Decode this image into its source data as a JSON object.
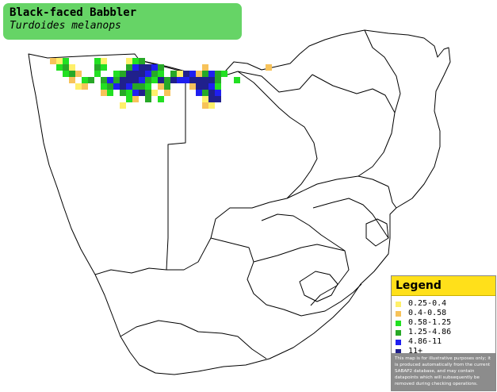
{
  "title": {
    "common_name": "Black-faced Babbler",
    "scientific_name": "Turdoides melanops"
  },
  "legend": {
    "heading": "Legend",
    "items": [
      {
        "label": "0.25-0.4",
        "color": "#fff06a"
      },
      {
        "label": "0.4-0.58",
        "color": "#f7c35a"
      },
      {
        "label": "0.58-1.25",
        "color": "#22e022"
      },
      {
        "label": "1.25-4.86",
        "color": "#27a827"
      },
      {
        "label": "4.86-11",
        "color": "#1f1ff0"
      },
      {
        "label": "11+",
        "color": "#20208c"
      }
    ],
    "note": "This map is for illustrative purposes only; it is produced automatically from the current SABAP2 database, and may contain datapoints which will subsequently be removed during checking operations."
  },
  "map": {
    "cells": [
      {
        "c": 0,
        "r": 0,
        "v": 1
      },
      {
        "c": 1,
        "r": 0,
        "v": 0
      },
      {
        "c": 2,
        "r": 0,
        "v": 2
      },
      {
        "c": 7,
        "r": 0,
        "v": 2
      },
      {
        "c": 8,
        "r": 0,
        "v": 0
      },
      {
        "c": 12,
        "r": 0,
        "v": 0
      },
      {
        "c": 13,
        "r": 0,
        "v": 2
      },
      {
        "c": 14,
        "r": 0,
        "v": 3
      },
      {
        "c": 1,
        "r": 1,
        "v": 2
      },
      {
        "c": 2,
        "r": 1,
        "v": 3
      },
      {
        "c": 3,
        "r": 1,
        "v": 0
      },
      {
        "c": 7,
        "r": 1,
        "v": 3
      },
      {
        "c": 8,
        "r": 1,
        "v": 2
      },
      {
        "c": 12,
        "r": 1,
        "v": 3
      },
      {
        "c": 13,
        "r": 1,
        "v": 4
      },
      {
        "c": 14,
        "r": 1,
        "v": 5
      },
      {
        "c": 15,
        "r": 1,
        "v": 5
      },
      {
        "c": 16,
        "r": 1,
        "v": 4
      },
      {
        "c": 17,
        "r": 1,
        "v": 3
      },
      {
        "c": 24,
        "r": 1,
        "v": 1
      },
      {
        "c": 34,
        "r": 1,
        "v": 1
      },
      {
        "c": 2,
        "r": 2,
        "v": 2
      },
      {
        "c": 3,
        "r": 2,
        "v": 3
      },
      {
        "c": 4,
        "r": 2,
        "v": 1
      },
      {
        "c": 7,
        "r": 2,
        "v": 2
      },
      {
        "c": 10,
        "r": 2,
        "v": 2
      },
      {
        "c": 11,
        "r": 2,
        "v": 3
      },
      {
        "c": 12,
        "r": 2,
        "v": 5
      },
      {
        "c": 13,
        "r": 2,
        "v": 5
      },
      {
        "c": 14,
        "r": 2,
        "v": 5
      },
      {
        "c": 15,
        "r": 2,
        "v": 4
      },
      {
        "c": 16,
        "r": 2,
        "v": 3
      },
      {
        "c": 17,
        "r": 2,
        "v": 2
      },
      {
        "c": 19,
        "r": 2,
        "v": 3
      },
      {
        "c": 20,
        "r": 2,
        "v": 0
      },
      {
        "c": 21,
        "r": 2,
        "v": 5
      },
      {
        "c": 22,
        "r": 2,
        "v": 4
      },
      {
        "c": 23,
        "r": 2,
        "v": 1
      },
      {
        "c": 24,
        "r": 2,
        "v": 3
      },
      {
        "c": 25,
        "r": 2,
        "v": 4
      },
      {
        "c": 26,
        "r": 2,
        "v": 3
      },
      {
        "c": 27,
        "r": 2,
        "v": 2
      },
      {
        "c": 3,
        "r": 3,
        "v": 1
      },
      {
        "c": 5,
        "r": 3,
        "v": 2
      },
      {
        "c": 6,
        "r": 3,
        "v": 3
      },
      {
        "c": 8,
        "r": 3,
        "v": 3
      },
      {
        "c": 9,
        "r": 3,
        "v": 4
      },
      {
        "c": 10,
        "r": 3,
        "v": 3
      },
      {
        "c": 11,
        "r": 3,
        "v": 5
      },
      {
        "c": 12,
        "r": 3,
        "v": 5
      },
      {
        "c": 13,
        "r": 3,
        "v": 5
      },
      {
        "c": 14,
        "r": 3,
        "v": 4
      },
      {
        "c": 15,
        "r": 3,
        "v": 3
      },
      {
        "c": 16,
        "r": 3,
        "v": 2
      },
      {
        "c": 17,
        "r": 3,
        "v": 5
      },
      {
        "c": 18,
        "r": 3,
        "v": 3
      },
      {
        "c": 19,
        "r": 3,
        "v": 5
      },
      {
        "c": 20,
        "r": 3,
        "v": 4
      },
      {
        "c": 21,
        "r": 3,
        "v": 4
      },
      {
        "c": 22,
        "r": 3,
        "v": 5
      },
      {
        "c": 23,
        "r": 3,
        "v": 5
      },
      {
        "c": 24,
        "r": 3,
        "v": 5
      },
      {
        "c": 25,
        "r": 3,
        "v": 5
      },
      {
        "c": 26,
        "r": 3,
        "v": 3
      },
      {
        "c": 29,
        "r": 3,
        "v": 2
      },
      {
        "c": 4,
        "r": 4,
        "v": 0
      },
      {
        "c": 5,
        "r": 4,
        "v": 1
      },
      {
        "c": 8,
        "r": 4,
        "v": 2
      },
      {
        "c": 9,
        "r": 4,
        "v": 3
      },
      {
        "c": 10,
        "r": 4,
        "v": 4
      },
      {
        "c": 11,
        "r": 4,
        "v": 5
      },
      {
        "c": 12,
        "r": 4,
        "v": 4
      },
      {
        "c": 13,
        "r": 4,
        "v": 3
      },
      {
        "c": 14,
        "r": 4,
        "v": 3
      },
      {
        "c": 15,
        "r": 4,
        "v": 2
      },
      {
        "c": 17,
        "r": 4,
        "v": 1
      },
      {
        "c": 18,
        "r": 4,
        "v": 3
      },
      {
        "c": 22,
        "r": 4,
        "v": 1
      },
      {
        "c": 23,
        "r": 4,
        "v": 5
      },
      {
        "c": 24,
        "r": 4,
        "v": 5
      },
      {
        "c": 25,
        "r": 4,
        "v": 4
      },
      {
        "c": 26,
        "r": 4,
        "v": 2
      },
      {
        "c": 8,
        "r": 5,
        "v": 1
      },
      {
        "c": 9,
        "r": 5,
        "v": 2
      },
      {
        "c": 11,
        "r": 5,
        "v": 3
      },
      {
        "c": 12,
        "r": 5,
        "v": 2
      },
      {
        "c": 13,
        "r": 5,
        "v": 4
      },
      {
        "c": 14,
        "r": 5,
        "v": 5
      },
      {
        "c": 15,
        "r": 5,
        "v": 3
      },
      {
        "c": 16,
        "r": 5,
        "v": 0
      },
      {
        "c": 18,
        "r": 5,
        "v": 1
      },
      {
        "c": 23,
        "r": 5,
        "v": 4
      },
      {
        "c": 24,
        "r": 5,
        "v": 3
      },
      {
        "c": 25,
        "r": 5,
        "v": 5
      },
      {
        "c": 26,
        "r": 5,
        "v": 4
      },
      {
        "c": 12,
        "r": 6,
        "v": 2
      },
      {
        "c": 13,
        "r": 6,
        "v": 1
      },
      {
        "c": 15,
        "r": 6,
        "v": 3
      },
      {
        "c": 17,
        "r": 6,
        "v": 2
      },
      {
        "c": 24,
        "r": 6,
        "v": 0
      },
      {
        "c": 25,
        "r": 6,
        "v": 5
      },
      {
        "c": 26,
        "r": 6,
        "v": 5
      },
      {
        "c": 11,
        "r": 7,
        "v": 0
      },
      {
        "c": 24,
        "r": 7,
        "v": 1
      },
      {
        "c": 25,
        "r": 7,
        "v": 0
      }
    ]
  }
}
